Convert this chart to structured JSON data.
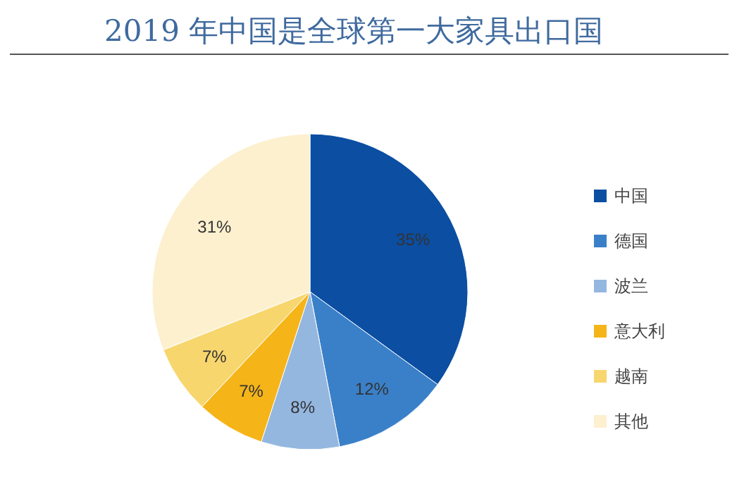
{
  "chart_data": {
    "type": "pie",
    "title": "2019 年中国是全球第一大家具出口国",
    "categories": [
      "中国",
      "德国",
      "波兰",
      "意大利",
      "越南",
      "其他"
    ],
    "values": [
      35,
      12,
      8,
      7,
      7,
      31
    ],
    "value_labels": [
      "35%",
      "12%",
      "8%",
      "7%",
      "7%",
      "31%"
    ],
    "colors": [
      "#0b4ea2",
      "#3a80c9",
      "#94b7e0",
      "#f5b418",
      "#f8d66e",
      "#fdf0cf"
    ],
    "legend": "right"
  }
}
